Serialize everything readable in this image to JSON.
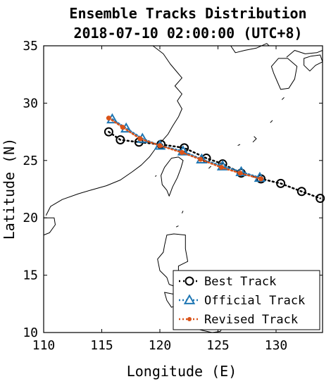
{
  "chart_data": {
    "type": "line",
    "title": "Ensemble Tracks Distribution",
    "subtitle": "2018-07-10 02:00:00 (UTC+8)",
    "xlabel": "Longitude (E)",
    "ylabel": "Latitude (N)",
    "xlim": [
      110,
      134
    ],
    "ylim": [
      10,
      35
    ],
    "xticks": [
      110,
      115,
      120,
      125,
      130
    ],
    "yticks": [
      10,
      15,
      20,
      25,
      30,
      35
    ],
    "grid": false,
    "legend_position": "bottom-right",
    "series": [
      {
        "name": "Best Track",
        "color": "#000000",
        "marker": "circle-open",
        "x": [
          115.6,
          116.6,
          118.2,
          120.1,
          122.1,
          124.0,
          125.4,
          127.0,
          128.7,
          130.4,
          132.2,
          133.8
        ],
        "y": [
          27.5,
          26.8,
          26.6,
          26.4,
          26.1,
          25.2,
          24.7,
          23.9,
          23.4,
          23.0,
          22.3,
          21.7
        ]
      },
      {
        "name": "Official Track",
        "color": "#1f77b4",
        "marker": "triangle-open",
        "x": [
          115.9,
          117.1,
          118.5,
          120.0,
          122.0,
          123.6,
          125.4,
          127.0,
          128.6
        ],
        "y": [
          28.6,
          27.8,
          26.9,
          26.3,
          25.8,
          25.1,
          24.5,
          24.0,
          23.5
        ]
      },
      {
        "name": "Revised Track",
        "color": "#d95319",
        "marker": "dot",
        "x": [
          115.6,
          116.8,
          118.3,
          120.0,
          121.9,
          123.5,
          125.3,
          126.9,
          128.7
        ],
        "y": [
          28.7,
          27.9,
          26.9,
          26.3,
          25.7,
          25.1,
          24.4,
          23.9,
          23.4
        ]
      }
    ]
  }
}
